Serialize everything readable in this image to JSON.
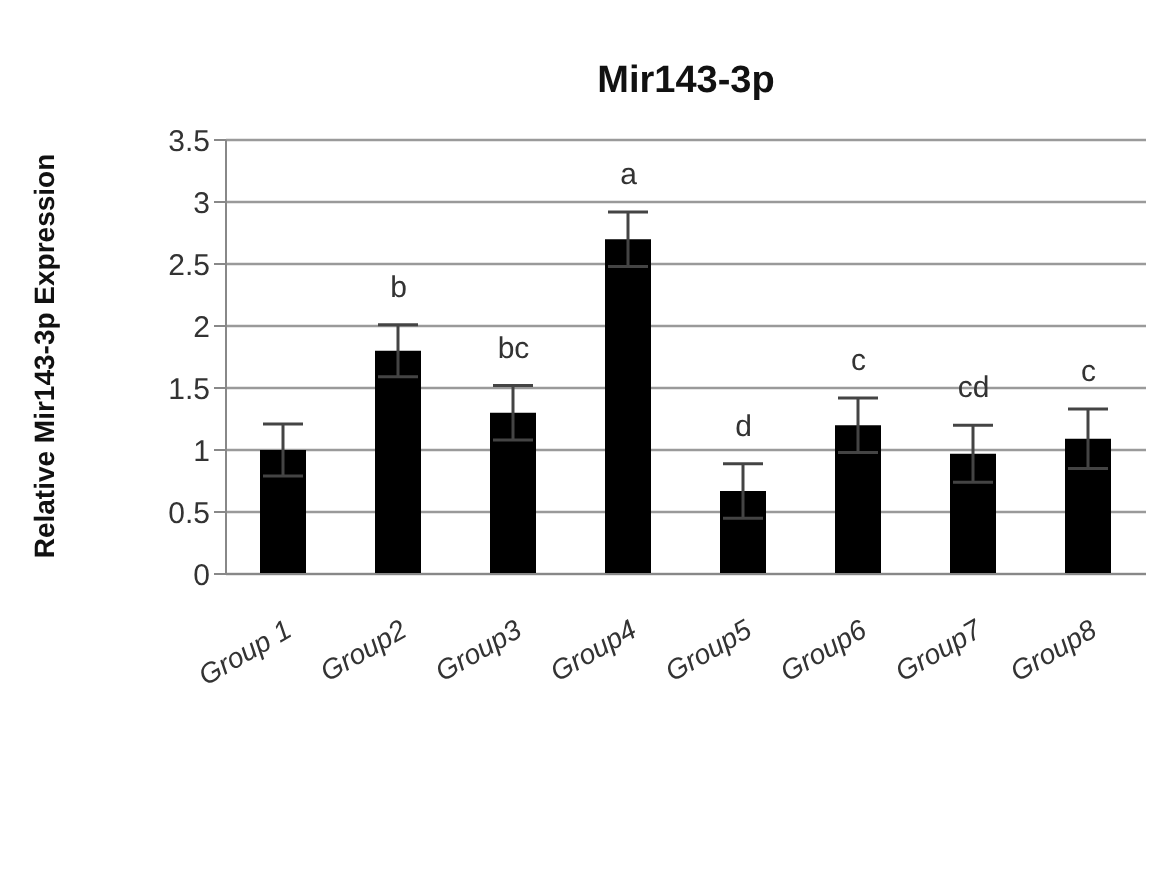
{
  "chart_data": {
    "type": "bar",
    "title": "Mir143-3p",
    "ylabel": "Relative Mir143-3p Expression",
    "categories": [
      "Group 1",
      "Group2",
      "Group3",
      "Group4",
      "Group5",
      "Group6",
      "Group7",
      "Group8"
    ],
    "values": [
      1.0,
      1.8,
      1.3,
      2.7,
      0.67,
      1.2,
      0.97,
      1.09
    ],
    "errors": [
      0.21,
      0.21,
      0.22,
      0.22,
      0.22,
      0.22,
      0.23,
      0.24
    ],
    "color": "#000000",
    "ylim": [
      0,
      3.5
    ],
    "yticks": [
      0,
      0.5,
      1,
      1.5,
      2,
      2.5,
      3,
      3.5
    ],
    "grid": "y",
    "legend": false,
    "annotations": [
      {
        "text": "b",
        "x": "Group2",
        "y": 2.01
      },
      {
        "text": "bc",
        "x": "Group3",
        "y": 1.52
      },
      {
        "text": "a",
        "x": "Group4",
        "y": 2.92
      },
      {
        "text": "d",
        "x": "Group5",
        "y": 0.89
      },
      {
        "text": "c",
        "x": "Group6",
        "y": 1.42
      },
      {
        "text": "cd",
        "x": "Group7",
        "y": 1.2
      },
      {
        "text": "c",
        "x": "Group8",
        "y": 1.33
      }
    ]
  }
}
